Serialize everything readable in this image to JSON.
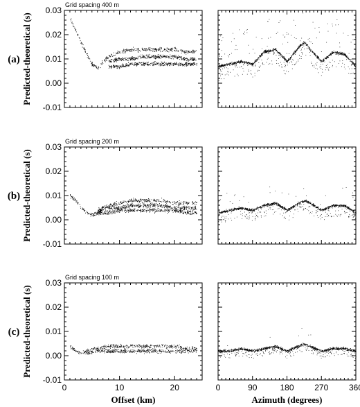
{
  "chart_data": [
    {
      "type": "scatter",
      "row_label": "(a)",
      "panel_title": "Grid spacing 400 m",
      "ylabel": "Predicted-theoretical (s)",
      "xlabel": "",
      "left": {
        "xlim": [
          0,
          25
        ],
        "ylim": [
          -0.01,
          0.03
        ],
        "xticks": [
          "0",
          "10",
          "20"
        ],
        "yticks": [
          "-0.01",
          "0.00",
          "0.01",
          "0.02",
          "0.03"
        ],
        "series": [
          {
            "x": [
              1,
              2,
              3,
              4,
              5,
              6,
              7,
              8,
              9,
              10,
              12,
              14,
              16,
              18,
              20,
              22,
              24
            ],
            "y": [
              0.027,
              0.022,
              0.017,
              0.012,
              0.008,
              0.006,
              0.009,
              0.011,
              0.012,
              0.013,
              0.014,
              0.014,
              0.014,
              0.014,
              0.014,
              0.013,
              0.013
            ]
          },
          {
            "x": [
              8,
              10,
              12,
              14,
              16,
              18,
              20,
              22,
              24
            ],
            "y": [
              0.009,
              0.01,
              0.01,
              0.011,
              0.011,
              0.011,
              0.011,
              0.01,
              0.01
            ]
          },
          {
            "x": [
              8,
              10,
              12,
              14,
              16,
              18,
              20,
              22,
              24
            ],
            "y": [
              0.007,
              0.007,
              0.008,
              0.008,
              0.008,
              0.008,
              0.008,
              0.008,
              0.008
            ]
          }
        ]
      },
      "right": {
        "xlim": [
          0,
          360
        ],
        "ylim": [
          -0.01,
          0.03
        ],
        "xticks": [
          "0",
          "90",
          "180",
          "270",
          "360"
        ],
        "curve": {
          "x": [
            0,
            30,
            60,
            90,
            120,
            150,
            180,
            210,
            225,
            240,
            270,
            300,
            330,
            360
          ],
          "y": [
            0.007,
            0.008,
            0.009,
            0.008,
            0.013,
            0.014,
            0.009,
            0.015,
            0.017,
            0.014,
            0.009,
            0.013,
            0.012,
            0.007
          ]
        }
      }
    },
    {
      "type": "scatter",
      "row_label": "(b)",
      "panel_title": "Grid spacing 200 m",
      "ylabel": "Predicted-theoretical (s)",
      "xlabel": "",
      "left": {
        "xlim": [
          0,
          25
        ],
        "ylim": [
          -0.01,
          0.03
        ],
        "xticks": [
          "0",
          "10",
          "20"
        ],
        "yticks": [
          "-0.01",
          "0.00",
          "0.01",
          "0.02",
          "0.03"
        ],
        "series": [
          {
            "x": [
              1,
              2,
              3,
              4,
              5,
              6,
              7,
              8,
              10,
              12,
              14,
              16,
              18,
              20,
              22,
              24
            ],
            "y": [
              0.01,
              0.008,
              0.005,
              0.003,
              0.002,
              0.003,
              0.005,
              0.006,
              0.007,
              0.008,
              0.008,
              0.008,
              0.008,
              0.007,
              0.007,
              0.007
            ]
          },
          {
            "x": [
              6,
              8,
              10,
              12,
              14,
              16,
              18,
              20,
              22,
              24
            ],
            "y": [
              0.004,
              0.005,
              0.005,
              0.006,
              0.006,
              0.006,
              0.006,
              0.005,
              0.005,
              0.005
            ]
          },
          {
            "x": [
              6,
              8,
              10,
              12,
              14,
              16,
              18,
              20,
              22,
              24
            ],
            "y": [
              0.003,
              0.003,
              0.004,
              0.004,
              0.004,
              0.004,
              0.004,
              0.004,
              0.003,
              0.003
            ]
          }
        ]
      },
      "right": {
        "xlim": [
          0,
          360
        ],
        "ylim": [
          -0.01,
          0.03
        ],
        "xticks": [
          "0",
          "90",
          "180",
          "270",
          "360"
        ],
        "curve": {
          "x": [
            0,
            30,
            60,
            90,
            120,
            150,
            180,
            210,
            225,
            240,
            270,
            300,
            330,
            360
          ],
          "y": [
            0.003,
            0.004,
            0.005,
            0.004,
            0.006,
            0.007,
            0.004,
            0.007,
            0.008,
            0.007,
            0.004,
            0.006,
            0.006,
            0.003
          ]
        }
      }
    },
    {
      "type": "scatter",
      "row_label": "(c)",
      "panel_title": "Grid spacing 100 m",
      "ylabel": "Predicted-theoretical (s)",
      "xlabel_left": "Offset (km)",
      "xlabel_right": "Azimuth (degrees)",
      "left": {
        "xlim": [
          0,
          25
        ],
        "ylim": [
          -0.01,
          0.03
        ],
        "xticks": [
          "0",
          "10",
          "20"
        ],
        "yticks": [
          "-0.01",
          "0.00",
          "0.01",
          "0.02",
          "0.03"
        ],
        "series": [
          {
            "x": [
              1,
              2,
              3,
              4,
              5,
              6,
              8,
              10,
              12,
              14,
              16,
              18,
              20,
              22,
              24
            ],
            "y": [
              0.004,
              0.002,
              0.001,
              0.002,
              0.003,
              0.003,
              0.004,
              0.004,
              0.004,
              0.004,
              0.004,
              0.004,
              0.004,
              0.003,
              0.003
            ]
          },
          {
            "x": [
              4,
              6,
              8,
              10,
              12,
              14,
              16,
              18,
              20,
              22,
              24
            ],
            "y": [
              0.001,
              0.002,
              0.002,
              0.002,
              0.002,
              0.002,
              0.002,
              0.002,
              0.002,
              0.002,
              0.002
            ]
          }
        ]
      },
      "right": {
        "xlim": [
          0,
          360
        ],
        "ylim": [
          -0.01,
          0.03
        ],
        "xticks": [
          "0",
          "90",
          "180",
          "270",
          "360"
        ],
        "curve": {
          "x": [
            0,
            30,
            60,
            90,
            120,
            150,
            180,
            210,
            225,
            240,
            270,
            300,
            330,
            360
          ],
          "y": [
            0.002,
            0.002,
            0.003,
            0.002,
            0.003,
            0.004,
            0.002,
            0.004,
            0.005,
            0.004,
            0.002,
            0.003,
            0.003,
            0.002
          ]
        }
      }
    }
  ]
}
